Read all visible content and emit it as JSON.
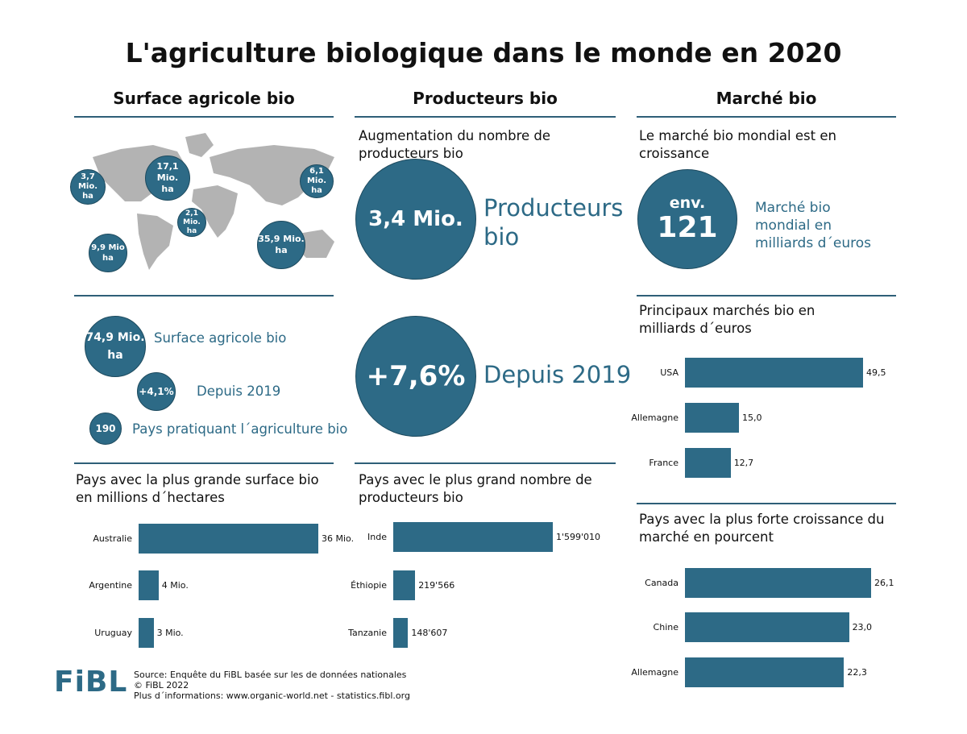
{
  "title": "L'agriculture biologique dans le monde en 2020",
  "accent_color": "#2d6a86",
  "columns": {
    "surface": "Surface agricole bio",
    "producteurs": "Producteurs bio",
    "marche": "Marché bio"
  },
  "map": {
    "bubbles": [
      {
        "value": "3,7 Mio.",
        "unit": "ha"
      },
      {
        "value": "17,1 Mio.",
        "unit": "ha"
      },
      {
        "value": "6,1 Mio.",
        "unit": "ha"
      },
      {
        "value": "2,1 Mio.",
        "unit": "ha"
      },
      {
        "value": "9,9 Mio",
        "unit": "ha"
      },
      {
        "value": "35,9 Mio.",
        "unit": "ha"
      }
    ]
  },
  "surface_stats": {
    "total_value": "74,9 Mio.",
    "total_unit": "ha",
    "total_label": "Surface agricole bio",
    "growth_value": "+4,1%",
    "growth_label": "Depuis 2019",
    "countries_value": "190",
    "countries_label": "Pays pratiquant l´agriculture bio"
  },
  "producteurs": {
    "heading": "Augmentation du nombre de producteurs bio",
    "count_value": "3,4 Mio.",
    "count_label": "Producteurs bio",
    "growth_value": "+7,6%",
    "growth_label": "Depuis 2019"
  },
  "marche": {
    "heading": "Le marché bio mondial est en croissance",
    "prefix": "env.",
    "value": "121",
    "label": "Marché bio mondial en milliards d´euros"
  },
  "chart_data": [
    {
      "type": "bar",
      "orientation": "horizontal",
      "title": "Pays avec la plus grande surface bio en millions d´hectares",
      "categories": [
        "Australie",
        "Argentine",
        "Uruguay"
      ],
      "values": [
        36,
        4,
        3
      ],
      "value_labels": [
        "36 Mio.",
        "4 Mio.",
        "3 Mio."
      ]
    },
    {
      "type": "bar",
      "orientation": "horizontal",
      "title": "Pays avec le plus grand nombre de producteurs bio",
      "categories": [
        "Inde",
        "Éthiopie",
        "Tanzanie"
      ],
      "values": [
        1599010,
        219566,
        148607
      ],
      "value_labels": [
        "1'599'010",
        "219'566",
        "148'607"
      ]
    },
    {
      "type": "bar",
      "orientation": "horizontal",
      "title": "Principaux marchés bio en milliards d´euros",
      "categories": [
        "USA",
        "Allemagne",
        "France"
      ],
      "values": [
        49.5,
        15.0,
        12.7
      ],
      "value_labels": [
        "49,5",
        "15,0",
        "12,7"
      ]
    },
    {
      "type": "bar",
      "orientation": "horizontal",
      "title": "Pays avec la plus forte croissance du marché en pourcent",
      "categories": [
        "Canada",
        "Chine",
        "Allemagne"
      ],
      "values": [
        26.1,
        23.0,
        22.3
      ],
      "value_labels": [
        "26,1",
        "23,0",
        "22,3"
      ]
    }
  ],
  "footer": {
    "logo": "FiBL",
    "source": "Source: Enquête du FiBL basée sur les de données nationales",
    "copyright": "© FiBL 2022",
    "more": "Plus d´informations: www.organic-world.net - statistics.fibl.org"
  }
}
